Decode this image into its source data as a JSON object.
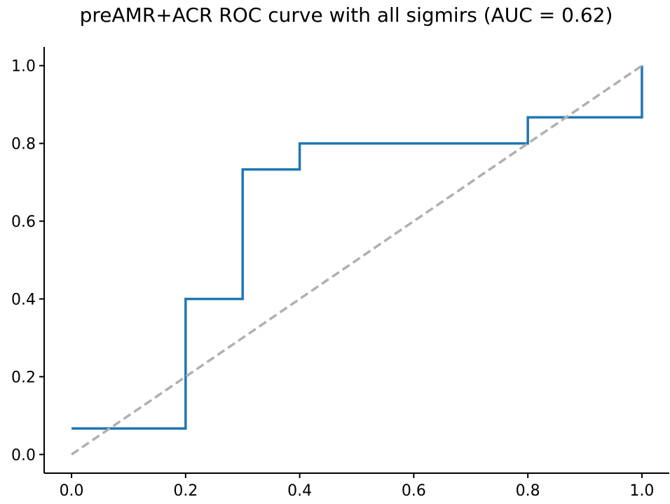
{
  "chart_data": {
    "type": "line",
    "title": "preAMR+ACR ROC curve with all sigmirs (AUC = 0.62)",
    "xlabel": "",
    "ylabel": "",
    "xlim": [
      -0.048,
      1.048
    ],
    "ylim": [
      -0.048,
      1.048
    ],
    "grid": false,
    "legend": "none",
    "x_ticks": [
      0.0,
      0.2,
      0.4,
      0.6,
      0.8,
      1.0
    ],
    "y_ticks": [
      0.0,
      0.2,
      0.4,
      0.6,
      0.8,
      1.0
    ],
    "x_tick_labels": [
      "0.0",
      "0.2",
      "0.4",
      "0.6",
      "0.8",
      "1.0"
    ],
    "y_tick_labels": [
      "0.0",
      "0.2",
      "0.4",
      "0.6",
      "0.8",
      "1.0"
    ],
    "series": [
      {
        "style": "step",
        "color": "#1f77b4",
        "x": [
          0.0,
          0.2,
          0.2,
          0.3,
          0.3,
          0.4,
          0.4,
          0.8,
          0.8,
          1.0,
          1.0
        ],
        "y": [
          0.067,
          0.067,
          0.4,
          0.4,
          0.733,
          0.733,
          0.8,
          0.8,
          0.867,
          0.867,
          1.0
        ]
      },
      {
        "style": "dashed",
        "color": "#b0b0b0",
        "x": [
          0.0,
          1.0
        ],
        "y": [
          0.0,
          1.0
        ]
      }
    ]
  }
}
